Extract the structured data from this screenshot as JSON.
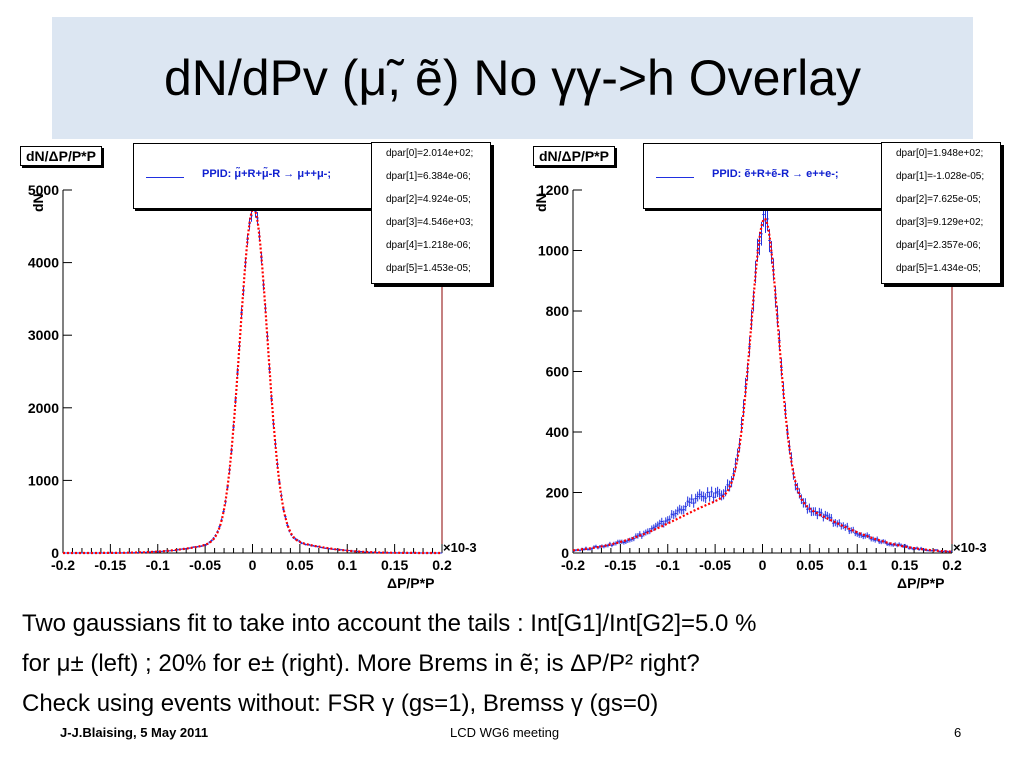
{
  "slide": {
    "title": "dN/dPv (μ̃, ẽ) No γγ->h Overlay",
    "caption_lines": [
      "Two gaussians fit to take into account the tails : Int[G1]/Int[G2]=5.0 %",
      "for μ± (left) ; 20% for e± (right). More Brems in ẽ;  is ΔP/P² right?",
      " Check using events without: FSR γ (gs=1), Bremss γ (gs=0)"
    ],
    "footer_left": "J-J.Blaising, 5 May 2011",
    "footer_center": "LCD WG6 meeting",
    "page_number": "6",
    "colors": {
      "title_band": "#dce6f2",
      "histogram": "#2030e0",
      "fit": "#ff0000",
      "axis": "#000000"
    }
  },
  "chart_data": [
    {
      "type": "histogram",
      "title": "dN/ΔP/P*P",
      "xlabel": "ΔP/P*P",
      "ylabel": "dN",
      "x_exponent": "×10-3",
      "xlim": [
        -0.2,
        0.2
      ],
      "ylim": [
        0,
        5000
      ],
      "xticks": [
        "-0.2",
        "-0.15",
        "-0.1",
        "-0.05",
        "0",
        "0.05",
        "0.1",
        "0.15",
        "0.2"
      ],
      "yticks": [
        "0",
        "1000",
        "2000",
        "3000",
        "4000",
        "5000"
      ],
      "legend": "PPID: μ̃+R+μ̃-R → μ++μ-;",
      "fit_params": [
        "dpar[0]=2.014e+02;",
        "dpar[1]=6.384e-06;",
        "dpar[2]=4.924e-05;",
        "dpar[3]=4.546e+03;",
        "dpar[4]=1.218e-06;",
        "dpar[5]=1.453e-05;"
      ],
      "fit": {
        "a1": 201.4,
        "m1": 0.006384,
        "s1": 0.04924,
        "a2": 4546,
        "m2": 0.001218,
        "s2": 0.01453
      },
      "peak": 4880
    },
    {
      "type": "histogram",
      "title": "dN/ΔP/P*P",
      "xlabel": "ΔP/P*P",
      "ylabel": "dN",
      "x_exponent": "×10-3",
      "xlim": [
        -0.2,
        0.2
      ],
      "ylim": [
        0,
        1200
      ],
      "xticks": [
        "-0.2",
        "-0.15",
        "-0.1",
        "-0.05",
        "0",
        "0.05",
        "0.1",
        "0.15",
        "0.2"
      ],
      "yticks": [
        "0",
        "200",
        "400",
        "600",
        "800",
        "1000",
        "1200"
      ],
      "legend": "PPID: ẽ+R+ẽ-R → e++e-;",
      "fit_params": [
        "dpar[0]=1.948e+02;",
        "dpar[1]=-1.028e-05;",
        "dpar[2]=7.625e-05;",
        "dpar[3]=9.129e+02;",
        "dpar[4]=2.357e-06;",
        "dpar[5]=1.434e-05;"
      ],
      "fit": {
        "a1": 194.8,
        "m1": -0.01028,
        "s1": 0.07625,
        "a2": 912.9,
        "m2": 0.002357,
        "s2": 0.01434
      },
      "peak": 1120
    }
  ]
}
